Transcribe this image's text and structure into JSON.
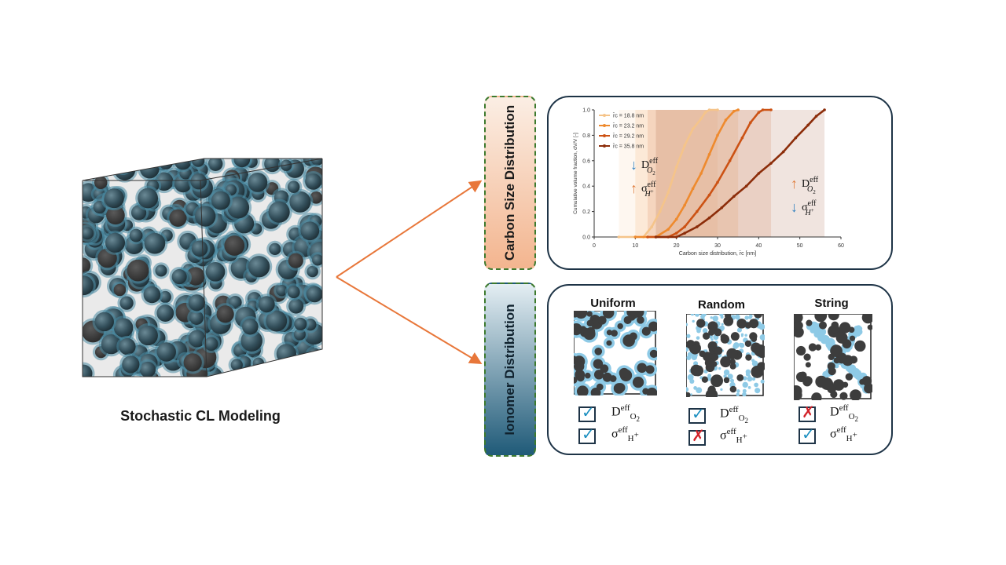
{
  "left": {
    "caption": "Stochastic CL Modeling"
  },
  "labels": {
    "carbon": "Carbon Size Distribution",
    "ionomer": "Ionomer Distribution"
  },
  "chart_data": {
    "type": "line",
    "xlabel": "Carbon size distribution, r̄c [nm]",
    "ylabel": "Cumulative volume fraction, dV/V [-]",
    "xlim": [
      0,
      60
    ],
    "ylim": [
      0,
      1.0
    ],
    "xticks": [
      0,
      10,
      20,
      30,
      40,
      50,
      60
    ],
    "yticks": [
      0.0,
      0.2,
      0.4,
      0.6,
      0.8,
      1.0
    ],
    "legend_position": "top-left",
    "series": [
      {
        "name": "r̄c = 18.8 nm",
        "color": "#f5c48a",
        "x": [
          6,
          12,
          14,
          16,
          18,
          20,
          22,
          24,
          26,
          27,
          28,
          30
        ],
        "y": [
          0.0,
          0.0,
          0.08,
          0.2,
          0.35,
          0.55,
          0.72,
          0.85,
          0.93,
          0.98,
          1.0,
          1.0
        ]
      },
      {
        "name": "r̄c = 23.2 nm",
        "color": "#ee8a2e",
        "x": [
          10,
          15,
          18,
          20,
          22,
          24,
          26,
          28,
          30,
          32,
          34,
          35
        ],
        "y": [
          0.0,
          0.0,
          0.06,
          0.14,
          0.25,
          0.38,
          0.5,
          0.65,
          0.8,
          0.92,
          0.99,
          1.0
        ]
      },
      {
        "name": "r̄c = 29.2 nm",
        "color": "#cc5214",
        "x": [
          13,
          18,
          20,
          22,
          25,
          28,
          30,
          33,
          36,
          38,
          40,
          41,
          43
        ],
        "y": [
          0.0,
          0.0,
          0.03,
          0.08,
          0.2,
          0.33,
          0.43,
          0.6,
          0.78,
          0.9,
          0.98,
          1.0,
          1.0
        ]
      },
      {
        "name": "r̄c = 35.8 nm",
        "color": "#8c2d0a",
        "x": [
          15,
          20,
          22,
          25,
          28,
          31,
          34,
          37,
          40,
          43,
          46,
          49,
          52,
          54,
          56
        ],
        "y": [
          0.0,
          0.0,
          0.03,
          0.08,
          0.15,
          0.23,
          0.32,
          0.4,
          0.5,
          0.58,
          0.67,
          0.78,
          0.88,
          0.95,
          1.0
        ]
      }
    ],
    "annotations": [
      {
        "arrow": "↓",
        "arrow_color": "#2f7fbf",
        "symbol": "D",
        "sup": "eff",
        "sub": "O",
        "subsub": "2"
      },
      {
        "arrow": "↑",
        "arrow_color": "#e07b39",
        "symbol": "σ",
        "sup": "eff",
        "sub": "H",
        "subsup": "+"
      },
      {
        "arrow": "↑",
        "arrow_color": "#e07b39",
        "symbol": "D",
        "sup": "eff",
        "sub": "O",
        "subsub": "2"
      },
      {
        "arrow": "↓",
        "arrow_color": "#2f7fbf",
        "symbol": "σ",
        "sup": "eff",
        "sub": "H",
        "subsup": "+"
      }
    ]
  },
  "ionomer": {
    "columns": [
      {
        "title": "Uniform",
        "diffusivity_ok": true,
        "conductivity_ok": true
      },
      {
        "title": "Random",
        "diffusivity_ok": true,
        "conductivity_ok": false
      },
      {
        "title": "String",
        "diffusivity_ok": false,
        "conductivity_ok": true
      }
    ],
    "prop_d": {
      "symbol": "D",
      "sup": "eff",
      "sub": "O",
      "subsub": "2"
    },
    "prop_s": {
      "symbol": "σ",
      "sup": "eff",
      "sub": "H",
      "subsup": "+"
    },
    "tick_glyph": "✓",
    "cross_glyph": "✗"
  },
  "colors": {
    "particle": "#2f4a55",
    "ionomer": "#8ecae6",
    "dark_particle": "#3d3d3d",
    "arrow": "#e8773a",
    "panel_border": "#1d3346"
  }
}
